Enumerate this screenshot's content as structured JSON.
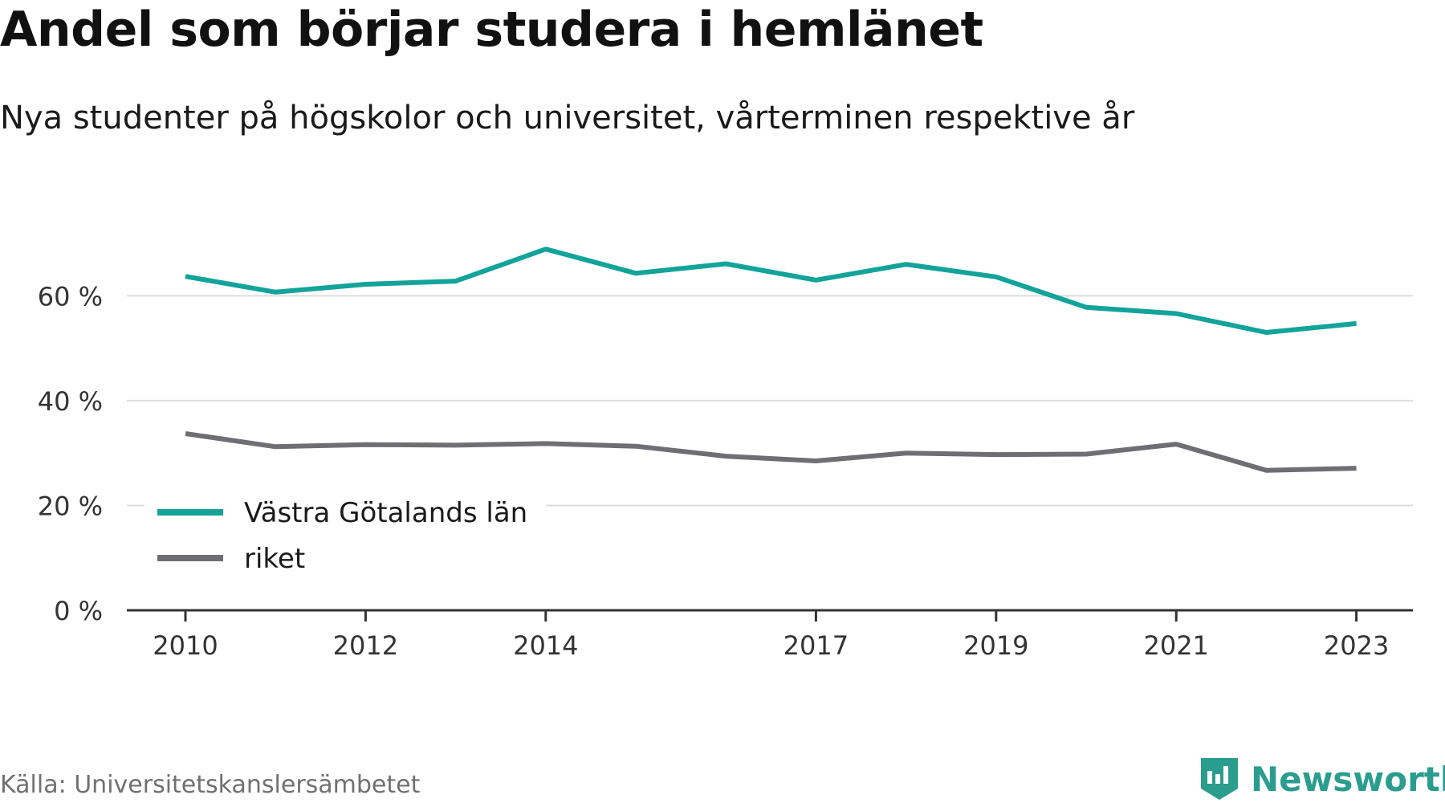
{
  "title": "Andel som börjar studera i hemlänet",
  "subtitle": "Nya studenter på högskolor och universitet, vårterminen respektive år",
  "source": "Källa: Universitetskanslersämbetet",
  "brand": "Newsworthy",
  "colors": {
    "series1": "#12a39a",
    "series2": "#6e6e73",
    "grid": "#dddddd",
    "axis": "#333333",
    "brand": "#2a9d8f"
  },
  "chart_data": {
    "type": "line",
    "title": "Andel som börjar studera i hemlänet",
    "subtitle": "Nya studenter på högskolor och universitet, vårterminen respektive år",
    "x": [
      2010,
      2011,
      2012,
      2013,
      2014,
      2015,
      2016,
      2017,
      2018,
      2019,
      2020,
      2021,
      2022,
      2023
    ],
    "xticks": [
      2010,
      2012,
      2014,
      2017,
      2019,
      2021,
      2023
    ],
    "yticks": [
      0,
      20,
      40,
      60
    ],
    "ytick_labels": [
      "0 %",
      "20 %",
      "40 %",
      "60 %"
    ],
    "ylim": [
      0,
      72
    ],
    "grid": true,
    "legend_position": "bottom-left",
    "series": [
      {
        "name": "Västra Götalands län",
        "color": "#12a39a",
        "values": [
          63.7,
          60.7,
          62.2,
          62.8,
          68.9,
          64.3,
          66.1,
          63.0,
          66.0,
          63.6,
          57.8,
          56.6,
          53.0,
          54.7
        ]
      },
      {
        "name": "riket",
        "color": "#6e6e73",
        "values": [
          33.7,
          31.2,
          31.6,
          31.5,
          31.8,
          31.3,
          29.4,
          28.5,
          30.0,
          29.7,
          29.8,
          31.7,
          26.7,
          27.1
        ]
      }
    ]
  }
}
